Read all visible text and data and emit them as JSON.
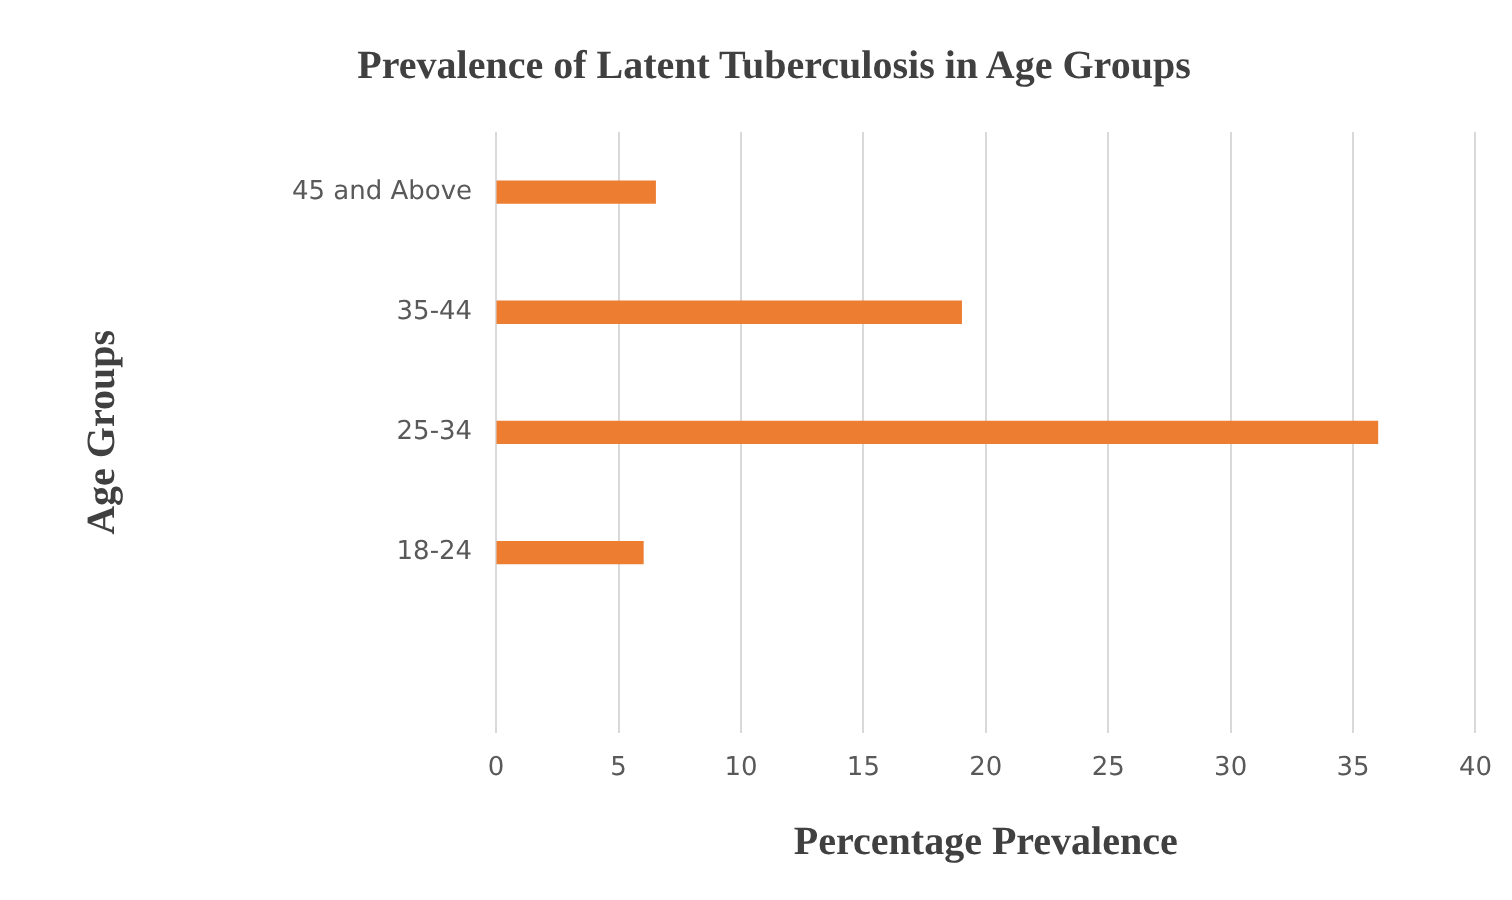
{
  "chart_data": {
    "type": "bar",
    "orientation": "horizontal",
    "title": "Prevalence of Latent Tuberculosis in Age Groups",
    "xlabel": "Percentage Prevalence",
    "ylabel": "Age Groups",
    "categories": [
      "45 and Above",
      "35-44",
      "25-34",
      "18-24",
      null
    ],
    "values": [
      6.5,
      19,
      36,
      6,
      null
    ],
    "color": "#ed7d31",
    "xlim": [
      0,
      40
    ],
    "xticks": [
      0,
      5,
      10,
      15,
      20,
      25,
      30,
      35,
      40
    ],
    "grid": "x",
    "legend": false
  }
}
